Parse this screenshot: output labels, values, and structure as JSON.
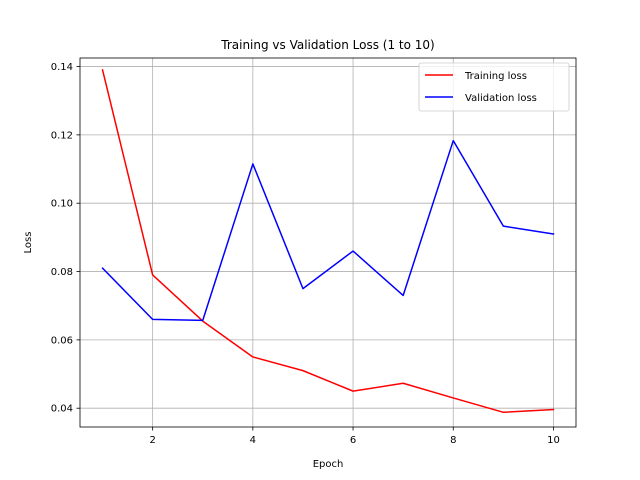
{
  "chart_data": {
    "type": "line",
    "title": "Training vs Validation Loss (1 to 10)",
    "xlabel": "Epoch",
    "ylabel": "Loss",
    "xlim": [
      0.55,
      10.45
    ],
    "ylim": [
      0.0345,
      0.1425
    ],
    "x_ticks": [
      2,
      4,
      6,
      8,
      10
    ],
    "y_ticks": [
      0.04,
      0.06,
      0.08,
      0.1,
      0.12,
      0.14
    ],
    "y_tick_labels": [
      "0.04",
      "0.06",
      "0.08",
      "0.10",
      "0.12",
      "0.14"
    ],
    "grid": true,
    "legend_position": "top-right",
    "x": [
      1,
      2,
      3,
      4,
      5,
      6,
      7,
      8,
      9,
      10
    ],
    "series": [
      {
        "name": "Training loss",
        "color": "#ff0000",
        "values": [
          0.139,
          0.079,
          0.0655,
          0.055,
          0.051,
          0.045,
          0.0473,
          0.043,
          0.0388,
          0.0396
        ]
      },
      {
        "name": "Validation loss",
        "color": "#0000ff",
        "values": [
          0.081,
          0.066,
          0.0657,
          0.1115,
          0.075,
          0.086,
          0.073,
          0.1183,
          0.0933,
          0.091
        ]
      }
    ]
  }
}
